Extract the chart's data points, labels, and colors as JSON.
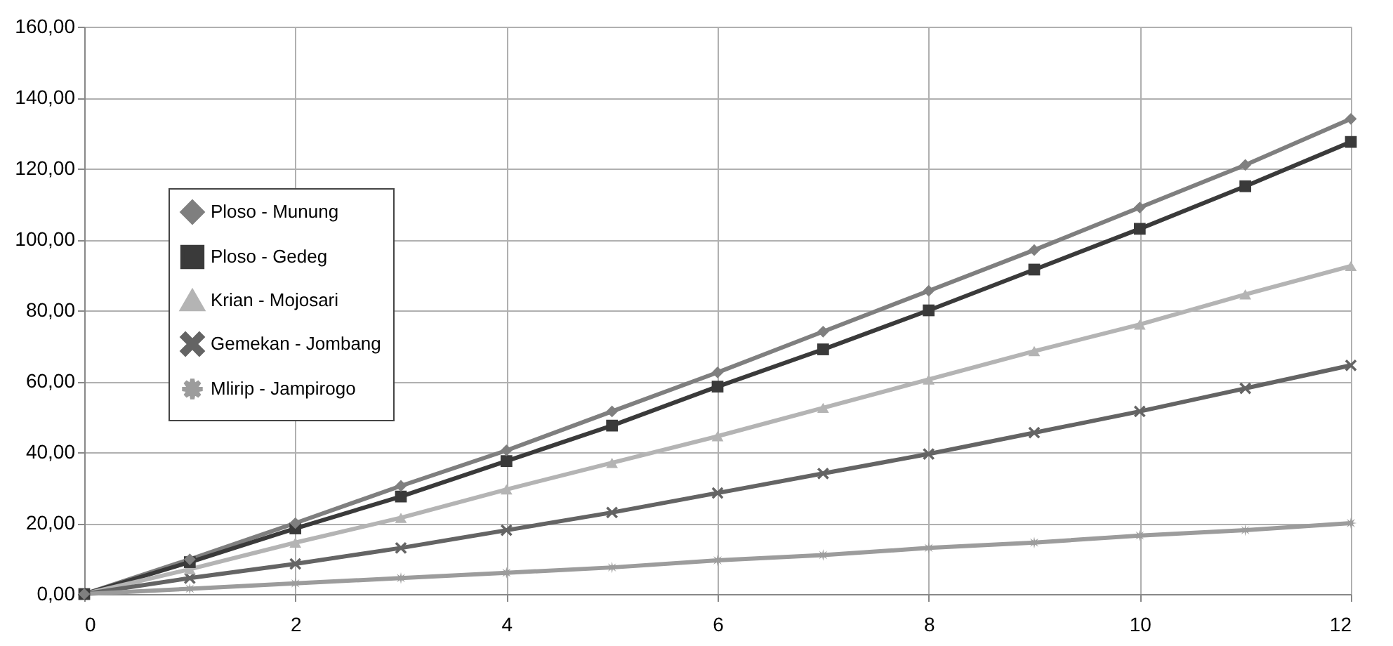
{
  "chart_data": {
    "type": "line",
    "x": [
      0,
      1,
      2,
      3,
      4,
      5,
      6,
      7,
      8,
      9,
      10,
      11,
      12
    ],
    "series": [
      {
        "name": "Ploso - Munung",
        "color": "#7f7f7f",
        "marker": "diamond",
        "values": [
          0,
          9.8,
          20,
          30.5,
          40.5,
          51.5,
          62.5,
          74,
          85.5,
          97,
          109,
          121,
          134
        ]
      },
      {
        "name": "Ploso - Gedeg",
        "color": "#3a3a3a",
        "marker": "square",
        "values": [
          0,
          9,
          18.5,
          27.5,
          37.5,
          47.5,
          58.5,
          69,
          80,
          91.5,
          103,
          115,
          127.5
        ]
      },
      {
        "name": "Krian - Mojosari",
        "color": "#b4b4b4",
        "marker": "triangle",
        "values": [
          0,
          7,
          14.5,
          21.5,
          29.5,
          37,
          44.5,
          52.5,
          60.5,
          68.5,
          76,
          84.5,
          92.5
        ]
      },
      {
        "name": "Gemekan - Jombang",
        "color": "#646464",
        "marker": "cross",
        "values": [
          0,
          4.5,
          8.5,
          13,
          18,
          23,
          28.5,
          34,
          39.5,
          45.5,
          51.5,
          58,
          64.5
        ]
      },
      {
        "name": "Mlirip - Jampirogo",
        "color": "#9c9c9c",
        "marker": "star",
        "values": [
          0,
          1.5,
          3,
          4.5,
          6,
          7.5,
          9.5,
          11,
          13,
          14.5,
          16.5,
          18,
          20
        ]
      }
    ],
    "xlim": [
      0,
      12
    ],
    "xticks": [
      {
        "value": 0,
        "label": "0"
      },
      {
        "value": 2,
        "label": "2"
      },
      {
        "value": 4,
        "label": "4"
      },
      {
        "value": 6,
        "label": "6"
      },
      {
        "value": 8,
        "label": "8"
      },
      {
        "value": 10,
        "label": "10"
      },
      {
        "value": 12,
        "label": "12"
      }
    ],
    "ylim": [
      0,
      160
    ],
    "yticks": [
      {
        "value": 0,
        "label": "0,00"
      },
      {
        "value": 20,
        "label": "20,00"
      },
      {
        "value": 40,
        "label": "40,00"
      },
      {
        "value": 60,
        "label": "60,00"
      },
      {
        "value": 80,
        "label": "80,00"
      },
      {
        "value": 100,
        "label": "100,00"
      },
      {
        "value": 120,
        "label": "120,00"
      },
      {
        "value": 140,
        "label": "140,00"
      },
      {
        "value": 160,
        "label": "160,00"
      }
    ],
    "grid": true,
    "legend": "left",
    "line_style": "solid"
  }
}
